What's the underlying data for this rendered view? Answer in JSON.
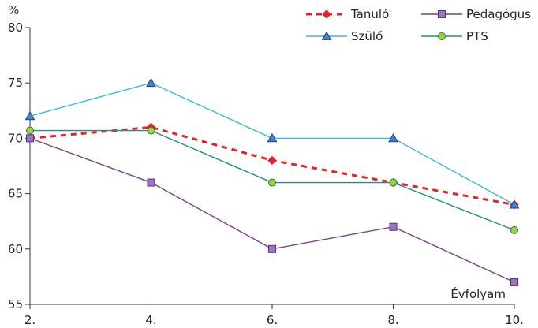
{
  "chart_data": {
    "type": "line",
    "x": [
      "2.",
      "4.",
      "6.",
      "8.",
      "10."
    ],
    "ylabel": "%",
    "xlabel": "Évfolyam",
    "ylim": [
      55,
      80
    ],
    "yticks": [
      "55",
      "60",
      "65",
      "70",
      "75",
      "80"
    ],
    "grid": false,
    "legend_position": "top-right",
    "series": [
      {
        "name": "Tanuló",
        "values": [
          70,
          71,
          68,
          66,
          64
        ],
        "color": "#e8202a",
        "style": "dashed",
        "marker": "diamond"
      },
      {
        "name": "Pedagógus",
        "values": [
          70,
          66,
          60,
          62,
          57
        ],
        "color": "#7a3f8f",
        "style": "solid",
        "marker": "square"
      },
      {
        "name": "Szülő",
        "values": [
          72,
          75,
          70,
          70,
          64
        ],
        "color": "#38bcd8",
        "style": "solid",
        "marker": "triangle"
      },
      {
        "name": "PTS",
        "values": [
          70.7,
          70.7,
          66,
          66,
          61.7
        ],
        "color": "#1f8f87",
        "style": "solid",
        "marker": "circle"
      }
    ]
  }
}
